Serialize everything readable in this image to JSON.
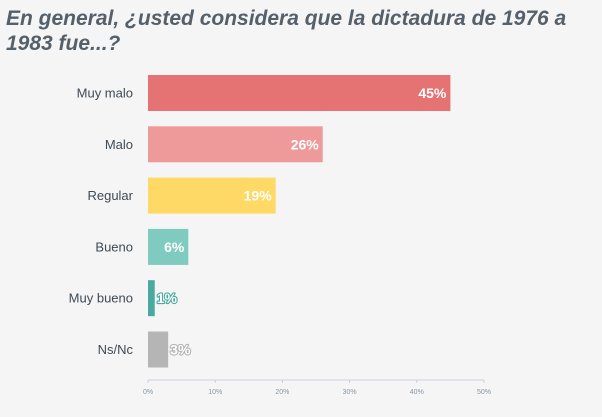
{
  "chart_data": {
    "type": "bar",
    "orientation": "horizontal",
    "title": "En general, ¿usted considera que la dictadura de 1976 a 1983 fue...?",
    "categories": [
      "Muy malo",
      "Malo",
      "Regular",
      "Bueno",
      "Muy bueno",
      "Ns/Nc"
    ],
    "values": [
      45,
      26,
      19,
      6,
      1,
      3
    ],
    "value_labels": [
      "45%",
      "26%",
      "19%",
      "6%",
      "1%",
      "3%"
    ],
    "colors": [
      "#e57373",
      "#ef9a9a",
      "#ffd966",
      "#7fcbc0",
      "#4aaa9f",
      "#b5b5b5"
    ],
    "xlim": [
      0,
      50
    ],
    "xticks": [
      0,
      10,
      20,
      30,
      40,
      50
    ],
    "xtick_labels": [
      "0%",
      "10%",
      "20%",
      "30%",
      "40%",
      "50%"
    ],
    "xlabel": "",
    "ylabel": "",
    "legend": "none",
    "grid": false
  }
}
